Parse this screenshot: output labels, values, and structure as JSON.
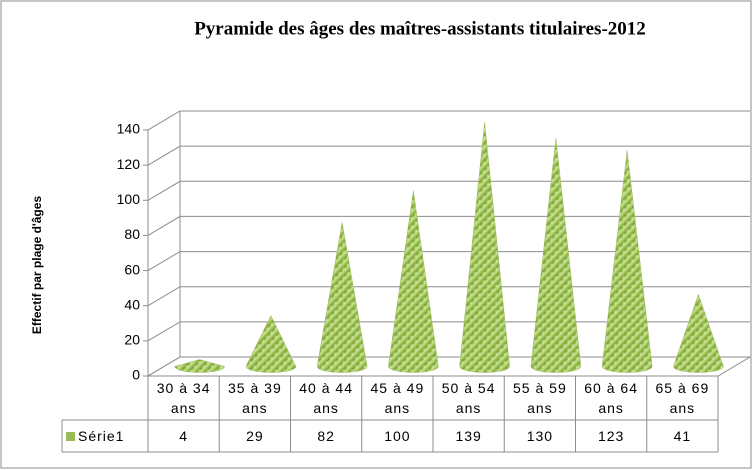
{
  "chart_data": {
    "type": "bar",
    "title": "Pyramide des âges des maîtres-assistants  titulaires-2012",
    "y_label": "Effectif par plage d'âges",
    "categories": [
      "30 à 34 ans",
      "35 à 39 ans",
      "40 à 44 ans",
      "45 à 49 ans",
      "50 à 54 ans",
      "55 à 59 ans",
      "60 à 64 ans",
      "65 à 69 ans"
    ],
    "series": [
      {
        "name": "Série1",
        "color": "#9bbb59",
        "values": [
          4,
          29,
          82,
          100,
          139,
          130,
          123,
          41
        ]
      }
    ],
    "ylim": [
      0,
      140
    ],
    "yticks": [
      0,
      20,
      40,
      60,
      80,
      100,
      120,
      140
    ],
    "grid": true,
    "data_table": true
  }
}
